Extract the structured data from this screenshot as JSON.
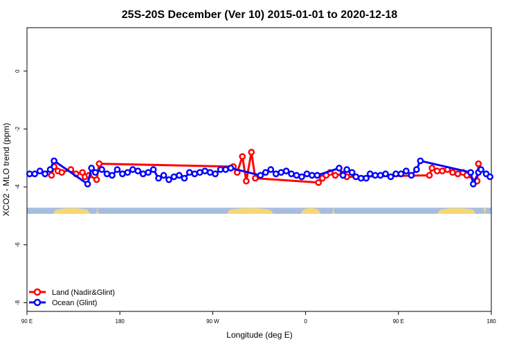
{
  "chart_data": {
    "type": "line",
    "title": "25S-20S December (Ver 10)   2015-01-01 to 2020-12-18",
    "xlabel": "Longitude (deg E)",
    "ylabel": "XCO2 - MLO trend (ppm)",
    "xlim": [
      90,
      450
    ],
    "ylim": [
      -8.3,
      1.5
    ],
    "x_ticks": [
      {
        "value": 90,
        "label": "90 E"
      },
      {
        "value": 162,
        "label": "180"
      },
      {
        "value": 234,
        "label": "90 W"
      },
      {
        "value": 306,
        "label": "0"
      },
      {
        "value": 378,
        "label": "90 E"
      },
      {
        "value": 450,
        "label": "180"
      }
    ],
    "y_ticks": [
      {
        "value": 0,
        "label": "0"
      },
      {
        "value": -2,
        "label": "-2"
      },
      {
        "value": -4,
        "label": "-4"
      },
      {
        "value": -6,
        "label": "-6"
      },
      {
        "value": -8,
        "label": "-8"
      }
    ],
    "grid": false,
    "legend_position": "bottom-left",
    "background_band": {
      "y_range": [
        -4.72,
        -4.93
      ],
      "ocean_color": "#a7bde0",
      "land_color": "#f7d774",
      "land_segments_x": [
        [
          110,
          139
        ],
        [
          143,
          146
        ],
        [
          245,
          281
        ],
        [
          302,
          318
        ],
        [
          326,
          329
        ],
        [
          408,
          438
        ],
        [
          444,
          446
        ]
      ]
    },
    "series": [
      {
        "name": "Land (Nadir&Glint)",
        "color": "#ff0000",
        "points": [
          [
            109,
            -3.6
          ],
          [
            111,
            -3.3
          ],
          [
            114,
            -3.45
          ],
          [
            117,
            -3.5
          ],
          [
            124,
            -3.4
          ],
          [
            128,
            -3.55
          ],
          [
            133,
            -3.5
          ],
          [
            135,
            -3.65
          ],
          [
            138,
            -3.6
          ],
          [
            144,
            -3.75
          ],
          [
            146,
            -3.2
          ],
          [
            250,
            -3.3
          ],
          [
            253,
            -3.5
          ],
          [
            257,
            -2.95
          ],
          [
            260,
            -3.8
          ],
          [
            264,
            -2.8
          ],
          [
            267,
            -3.7
          ],
          [
            316,
            -3.85
          ],
          [
            319,
            -3.7
          ],
          [
            322,
            -3.6
          ],
          [
            325,
            -3.5
          ],
          [
            329,
            -3.6
          ],
          [
            335,
            -3.55
          ],
          [
            338,
            -3.65
          ],
          [
            402,
            -3.6
          ],
          [
            404,
            -3.35
          ],
          [
            408,
            -3.45
          ],
          [
            412,
            -3.45
          ],
          [
            416,
            -3.4
          ],
          [
            420,
            -3.5
          ],
          [
            424,
            -3.55
          ],
          [
            428,
            -3.5
          ],
          [
            431,
            -3.6
          ],
          [
            439,
            -3.8
          ],
          [
            440,
            -3.2
          ]
        ]
      },
      {
        "name": "Ocean (Glint)",
        "color": "#0000ff",
        "points": [
          [
            92,
            -3.55
          ],
          [
            96,
            -3.55
          ],
          [
            100,
            -3.45
          ],
          [
            104,
            -3.55
          ],
          [
            108,
            -3.4
          ],
          [
            111,
            -3.1
          ],
          [
            137,
            -3.9
          ],
          [
            140,
            -3.35
          ],
          [
            143,
            -3.5
          ],
          [
            148,
            -3.4
          ],
          [
            152,
            -3.55
          ],
          [
            156,
            -3.6
          ],
          [
            160,
            -3.4
          ],
          [
            164,
            -3.55
          ],
          [
            168,
            -3.5
          ],
          [
            172,
            -3.4
          ],
          [
            176,
            -3.45
          ],
          [
            180,
            -3.55
          ],
          [
            184,
            -3.5
          ],
          [
            188,
            -3.4
          ],
          [
            192,
            -3.7
          ],
          [
            196,
            -3.6
          ],
          [
            200,
            -3.75
          ],
          [
            204,
            -3.65
          ],
          [
            208,
            -3.6
          ],
          [
            212,
            -3.7
          ],
          [
            216,
            -3.5
          ],
          [
            220,
            -3.55
          ],
          [
            224,
            -3.5
          ],
          [
            228,
            -3.45
          ],
          [
            232,
            -3.5
          ],
          [
            236,
            -3.55
          ],
          [
            240,
            -3.4
          ],
          [
            244,
            -3.4
          ],
          [
            248,
            -3.35
          ],
          [
            271,
            -3.6
          ],
          [
            275,
            -3.5
          ],
          [
            279,
            -3.4
          ],
          [
            283,
            -3.55
          ],
          [
            287,
            -3.5
          ],
          [
            291,
            -3.45
          ],
          [
            295,
            -3.55
          ],
          [
            299,
            -3.6
          ],
          [
            303,
            -3.65
          ],
          [
            307,
            -3.55
          ],
          [
            311,
            -3.6
          ],
          [
            315,
            -3.6
          ],
          [
            332,
            -3.35
          ],
          [
            335,
            -3.6
          ],
          [
            338,
            -3.4
          ],
          [
            342,
            -3.5
          ],
          [
            345,
            -3.65
          ],
          [
            349,
            -3.7
          ],
          [
            353,
            -3.7
          ],
          [
            356,
            -3.55
          ],
          [
            360,
            -3.6
          ],
          [
            364,
            -3.6
          ],
          [
            368,
            -3.55
          ],
          [
            372,
            -3.65
          ],
          [
            376,
            -3.55
          ],
          [
            380,
            -3.55
          ],
          [
            384,
            -3.45
          ],
          [
            388,
            -3.6
          ],
          [
            392,
            -3.4
          ],
          [
            395,
            -3.1
          ],
          [
            434,
            -3.5
          ],
          [
            436,
            -3.9
          ],
          [
            440,
            -3.5
          ],
          [
            442,
            -3.4
          ],
          [
            446,
            -3.55
          ],
          [
            449,
            -3.65
          ]
        ]
      }
    ]
  }
}
